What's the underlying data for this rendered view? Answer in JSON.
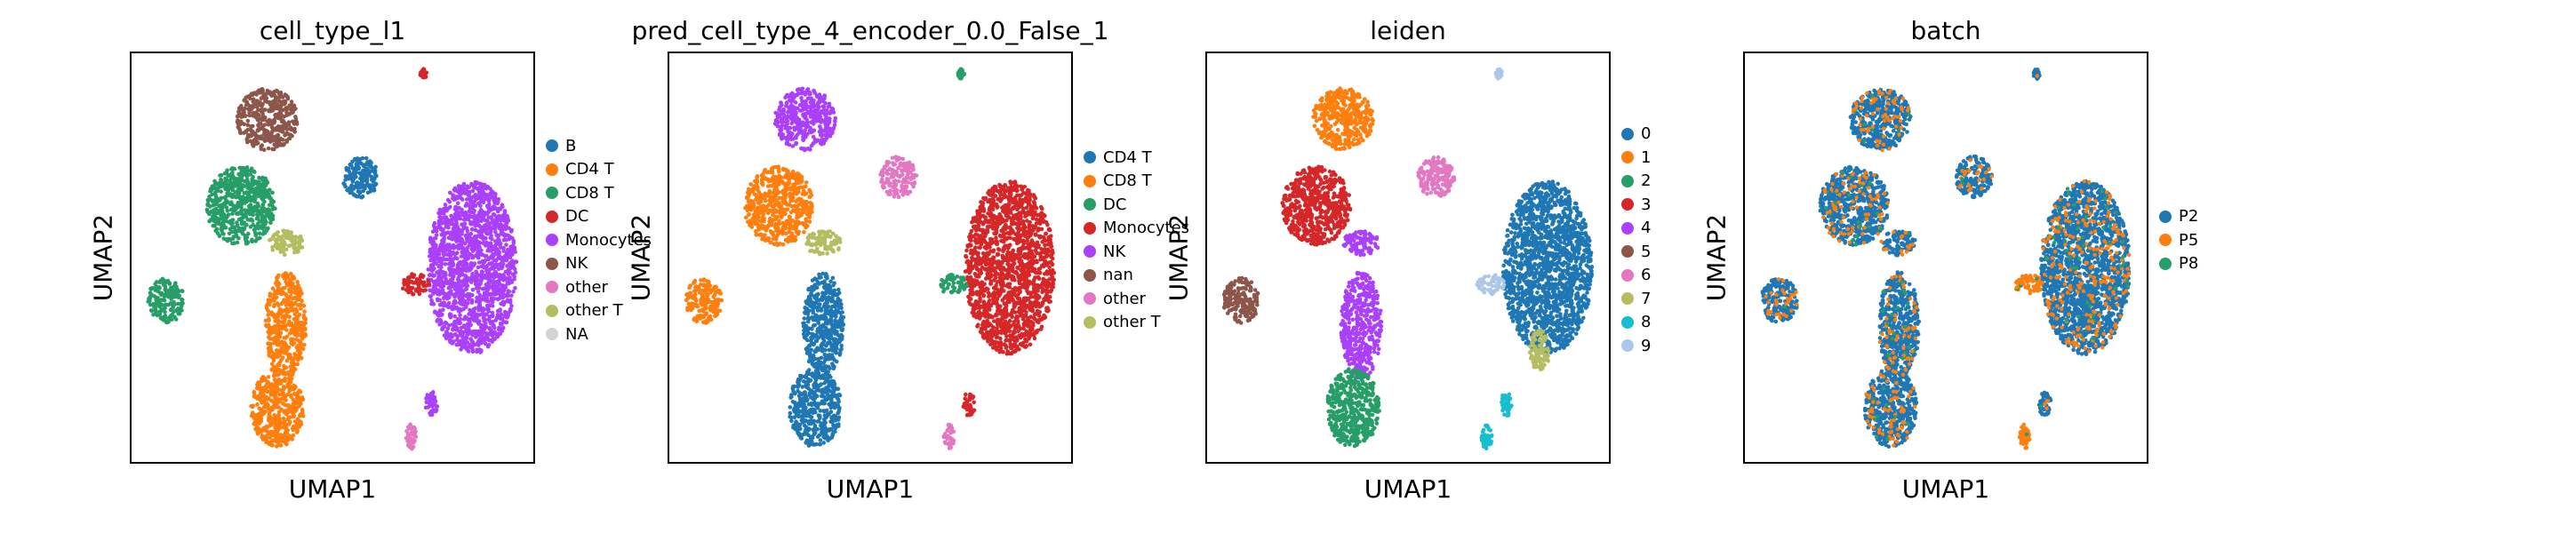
{
  "chart_data": [
    {
      "type": "scatter",
      "title": "cell_type_l1",
      "xlabel": "UMAP1",
      "ylabel": "UMAP2",
      "legend": "right",
      "legend_entries": [
        {
          "label": "B",
          "color": "#1f77b4"
        },
        {
          "label": "CD4 T",
          "color": "#ff7f0e"
        },
        {
          "label": "CD8 T",
          "color": "#279e68"
        },
        {
          "label": "DC",
          "color": "#d62728"
        },
        {
          "label": "Monocytes",
          "color": "#aa40fc"
        },
        {
          "label": "NK",
          "color": "#8c564b"
        },
        {
          "label": "other",
          "color": "#e377c2"
        },
        {
          "label": "other T",
          "color": "#b5bd61"
        },
        {
          "label": "NA",
          "color": "#d3d3d3"
        }
      ],
      "clusters": [
        {
          "label": "NK",
          "cx": 0.335,
          "cy": 0.16,
          "rx": 0.075,
          "ry": 0.075
        },
        {
          "label": "CD8 T",
          "cx": 0.27,
          "cy": 0.37,
          "rx": 0.085,
          "ry": 0.095
        },
        {
          "label": "CD4 T",
          "cx": 0.38,
          "cy": 0.66,
          "rx": 0.05,
          "ry": 0.13
        },
        {
          "label": "CD4 T",
          "cx": 0.36,
          "cy": 0.86,
          "rx": 0.065,
          "ry": 0.095
        },
        {
          "label": "other T",
          "cx": 0.38,
          "cy": 0.46,
          "rx": 0.045,
          "ry": 0.03
        },
        {
          "label": "CD8 T",
          "cx": 0.085,
          "cy": 0.6,
          "rx": 0.045,
          "ry": 0.055
        },
        {
          "label": "B",
          "cx": 0.565,
          "cy": 0.3,
          "rx": 0.045,
          "ry": 0.05
        },
        {
          "label": "Monocytes",
          "cx": 0.84,
          "cy": 0.52,
          "rx": 0.11,
          "ry": 0.21
        },
        {
          "label": "DC",
          "cx": 0.7,
          "cy": 0.56,
          "rx": 0.035,
          "ry": 0.025
        },
        {
          "label": "Monocytes",
          "cx": 0.74,
          "cy": 0.85,
          "rx": 0.015,
          "ry": 0.03
        },
        {
          "label": "other",
          "cx": 0.69,
          "cy": 0.93,
          "rx": 0.013,
          "ry": 0.03
        },
        {
          "label": "DC",
          "cx": 0.72,
          "cy": 0.05,
          "rx": 0.008,
          "ry": 0.012
        }
      ]
    },
    {
      "type": "scatter",
      "title": "pred_cell_type_4_encoder_0.0_False_1",
      "xlabel": "UMAP1",
      "ylabel": "UMAP2",
      "legend": "right",
      "legend_entries": [
        {
          "label": "CD4 T",
          "color": "#1f77b4"
        },
        {
          "label": "CD8 T",
          "color": "#ff7f0e"
        },
        {
          "label": "DC",
          "color": "#279e68"
        },
        {
          "label": "Monocytes",
          "color": "#d62728"
        },
        {
          "label": "NK",
          "color": "#aa40fc"
        },
        {
          "label": "nan",
          "color": "#8c564b"
        },
        {
          "label": "other",
          "color": "#e377c2"
        },
        {
          "label": "other T",
          "color": "#b5bd61"
        }
      ],
      "clusters": [
        {
          "label": "NK",
          "cx": 0.335,
          "cy": 0.16,
          "rx": 0.075,
          "ry": 0.075
        },
        {
          "label": "CD8 T",
          "cx": 0.27,
          "cy": 0.37,
          "rx": 0.085,
          "ry": 0.095
        },
        {
          "label": "CD4 T",
          "cx": 0.38,
          "cy": 0.66,
          "rx": 0.05,
          "ry": 0.13
        },
        {
          "label": "CD4 T",
          "cx": 0.36,
          "cy": 0.86,
          "rx": 0.065,
          "ry": 0.095
        },
        {
          "label": "other T",
          "cx": 0.38,
          "cy": 0.46,
          "rx": 0.045,
          "ry": 0.03
        },
        {
          "label": "CD8 T",
          "cx": 0.085,
          "cy": 0.6,
          "rx": 0.045,
          "ry": 0.055
        },
        {
          "label": "other",
          "cx": 0.565,
          "cy": 0.3,
          "rx": 0.045,
          "ry": 0.05
        },
        {
          "label": "Monocytes",
          "cx": 0.84,
          "cy": 0.52,
          "rx": 0.11,
          "ry": 0.21
        },
        {
          "label": "DC",
          "cx": 0.7,
          "cy": 0.56,
          "rx": 0.035,
          "ry": 0.025
        },
        {
          "label": "Monocytes",
          "cx": 0.74,
          "cy": 0.85,
          "rx": 0.015,
          "ry": 0.03
        },
        {
          "label": "other",
          "cx": 0.69,
          "cy": 0.93,
          "rx": 0.013,
          "ry": 0.03
        },
        {
          "label": "DC",
          "cx": 0.72,
          "cy": 0.05,
          "rx": 0.008,
          "ry": 0.012
        }
      ]
    },
    {
      "type": "scatter",
      "title": "leiden",
      "xlabel": "UMAP1",
      "ylabel": "UMAP2",
      "legend": "right",
      "legend_entries": [
        {
          "label": "0",
          "color": "#1f77b4"
        },
        {
          "label": "1",
          "color": "#ff7f0e"
        },
        {
          "label": "2",
          "color": "#279e68"
        },
        {
          "label": "3",
          "color": "#d62728"
        },
        {
          "label": "4",
          "color": "#aa40fc"
        },
        {
          "label": "5",
          "color": "#8c564b"
        },
        {
          "label": "6",
          "color": "#e377c2"
        },
        {
          "label": "7",
          "color": "#b5bd61"
        },
        {
          "label": "8",
          "color": "#17becf"
        },
        {
          "label": "9",
          "color": "#aec7e8"
        }
      ],
      "clusters": [
        {
          "label": "1",
          "cx": 0.335,
          "cy": 0.16,
          "rx": 0.075,
          "ry": 0.075
        },
        {
          "label": "3",
          "cx": 0.27,
          "cy": 0.37,
          "rx": 0.085,
          "ry": 0.095
        },
        {
          "label": "4",
          "cx": 0.38,
          "cy": 0.66,
          "rx": 0.05,
          "ry": 0.13
        },
        {
          "label": "2",
          "cx": 0.36,
          "cy": 0.86,
          "rx": 0.065,
          "ry": 0.095
        },
        {
          "label": "4",
          "cx": 0.38,
          "cy": 0.46,
          "rx": 0.045,
          "ry": 0.03
        },
        {
          "label": "5",
          "cx": 0.085,
          "cy": 0.6,
          "rx": 0.045,
          "ry": 0.055
        },
        {
          "label": "6",
          "cx": 0.565,
          "cy": 0.3,
          "rx": 0.045,
          "ry": 0.05
        },
        {
          "label": "0",
          "cx": 0.84,
          "cy": 0.52,
          "rx": 0.11,
          "ry": 0.21
        },
        {
          "label": "9",
          "cx": 0.7,
          "cy": 0.56,
          "rx": 0.035,
          "ry": 0.025
        },
        {
          "label": "7",
          "cx": 0.82,
          "cy": 0.72,
          "rx": 0.025,
          "ry": 0.05
        },
        {
          "label": "8",
          "cx": 0.74,
          "cy": 0.85,
          "rx": 0.015,
          "ry": 0.03
        },
        {
          "label": "8",
          "cx": 0.69,
          "cy": 0.93,
          "rx": 0.013,
          "ry": 0.03
        },
        {
          "label": "9",
          "cx": 0.72,
          "cy": 0.05,
          "rx": 0.008,
          "ry": 0.012
        }
      ]
    },
    {
      "type": "scatter",
      "title": "batch",
      "xlabel": "UMAP1",
      "ylabel": "UMAP2",
      "legend": "right",
      "legend_entries": [
        {
          "label": "P2",
          "color": "#1f77b4"
        },
        {
          "label": "P5",
          "color": "#ff7f0e"
        },
        {
          "label": "P8",
          "color": "#279e68"
        }
      ],
      "clusters": [
        {
          "label": "P2",
          "cx": 0.335,
          "cy": 0.16,
          "rx": 0.075,
          "ry": 0.075
        },
        {
          "label": "P2",
          "cx": 0.27,
          "cy": 0.37,
          "rx": 0.085,
          "ry": 0.095
        },
        {
          "label": "P2",
          "cx": 0.38,
          "cy": 0.66,
          "rx": 0.05,
          "ry": 0.13
        },
        {
          "label": "P2",
          "cx": 0.36,
          "cy": 0.86,
          "rx": 0.065,
          "ry": 0.095
        },
        {
          "label": "P2",
          "cx": 0.38,
          "cy": 0.46,
          "rx": 0.045,
          "ry": 0.03
        },
        {
          "label": "P2",
          "cx": 0.085,
          "cy": 0.6,
          "rx": 0.045,
          "ry": 0.055
        },
        {
          "label": "P2",
          "cx": 0.565,
          "cy": 0.3,
          "rx": 0.045,
          "ry": 0.05
        },
        {
          "label": "P2",
          "cx": 0.84,
          "cy": 0.52,
          "rx": 0.11,
          "ry": 0.21
        },
        {
          "label": "P5",
          "cx": 0.7,
          "cy": 0.56,
          "rx": 0.035,
          "ry": 0.025
        },
        {
          "label": "P2",
          "cx": 0.74,
          "cy": 0.85,
          "rx": 0.015,
          "ry": 0.03
        },
        {
          "label": "P5",
          "cx": 0.69,
          "cy": 0.93,
          "rx": 0.013,
          "ry": 0.03
        },
        {
          "label": "P2",
          "cx": 0.72,
          "cy": 0.05,
          "rx": 0.008,
          "ry": 0.012
        }
      ]
    }
  ]
}
